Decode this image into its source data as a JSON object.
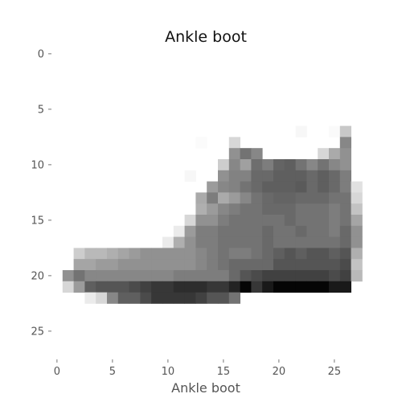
{
  "chart_data": {
    "type": "heatmap",
    "title": "Ankle boot",
    "xlabel": "Ankle boot",
    "ylabel": "",
    "colormap": "gray_r",
    "grid": false,
    "n_rows": 28,
    "n_cols": 28,
    "x_ticks": [
      0,
      5,
      10,
      15,
      20,
      25
    ],
    "y_ticks": [
      0,
      5,
      10,
      15,
      20,
      25
    ],
    "pixels_value_scale": "0 = white, 255 = black",
    "pixels": [
      [
        0,
        0,
        0,
        0,
        0,
        0,
        0,
        0,
        0,
        0,
        0,
        0,
        0,
        0,
        0,
        0,
        0,
        0,
        0,
        0,
        0,
        0,
        0,
        0,
        0,
        0,
        0,
        0
      ],
      [
        0,
        0,
        0,
        0,
        0,
        0,
        0,
        0,
        0,
        0,
        0,
        0,
        0,
        0,
        0,
        0,
        0,
        0,
        0,
        0,
        0,
        0,
        0,
        0,
        0,
        0,
        0,
        0
      ],
      [
        0,
        0,
        0,
        0,
        0,
        0,
        0,
        0,
        0,
        0,
        0,
        0,
        0,
        0,
        0,
        0,
        0,
        0,
        0,
        0,
        0,
        0,
        0,
        0,
        0,
        0,
        0,
        0
      ],
      [
        0,
        0,
        0,
        0,
        0,
        0,
        0,
        0,
        0,
        0,
        0,
        0,
        0,
        0,
        0,
        0,
        0,
        0,
        0,
        0,
        0,
        0,
        0,
        0,
        0,
        0,
        0,
        0
      ],
      [
        0,
        0,
        0,
        0,
        0,
        0,
        0,
        0,
        0,
        0,
        0,
        0,
        0,
        0,
        0,
        0,
        0,
        0,
        0,
        0,
        0,
        0,
        0,
        0,
        0,
        0,
        0,
        0
      ],
      [
        0,
        0,
        0,
        0,
        0,
        0,
        0,
        0,
        0,
        0,
        0,
        0,
        0,
        0,
        0,
        0,
        0,
        0,
        0,
        0,
        0,
        0,
        0,
        0,
        0,
        0,
        0,
        0
      ],
      [
        0,
        0,
        0,
        0,
        0,
        0,
        0,
        0,
        0,
        0,
        0,
        0,
        0,
        0,
        0,
        0,
        0,
        0,
        0,
        0,
        0,
        0,
        0,
        0,
        0,
        0,
        0,
        0
      ],
      [
        0,
        0,
        0,
        0,
        0,
        0,
        0,
        0,
        0,
        0,
        0,
        0,
        0,
        0,
        0,
        0,
        0,
        0,
        0,
        0,
        0,
        0,
        8,
        0,
        0,
        5,
        55,
        0
      ],
      [
        0,
        0,
        0,
        0,
        0,
        0,
        0,
        0,
        0,
        0,
        0,
        0,
        0,
        4,
        0,
        0,
        40,
        0,
        0,
        0,
        0,
        0,
        0,
        0,
        0,
        0,
        120,
        0
      ],
      [
        0,
        0,
        0,
        0,
        0,
        0,
        0,
        0,
        0,
        0,
        0,
        0,
        0,
        0,
        0,
        0,
        110,
        140,
        120,
        0,
        0,
        0,
        0,
        0,
        40,
        85,
        110,
        0
      ],
      [
        0,
        0,
        0,
        0,
        0,
        0,
        0,
        0,
        0,
        0,
        0,
        0,
        0,
        0,
        0,
        50,
        120,
        95,
        145,
        130,
        155,
        160,
        140,
        120,
        140,
        120,
        110,
        0
      ],
      [
        0,
        0,
        0,
        0,
        0,
        0,
        0,
        0,
        0,
        0,
        0,
        0,
        8,
        0,
        0,
        110,
        125,
        125,
        150,
        150,
        160,
        160,
        160,
        150,
        160,
        150,
        130,
        0
      ],
      [
        0,
        0,
        0,
        0,
        0,
        0,
        0,
        0,
        0,
        0,
        0,
        0,
        0,
        0,
        100,
        120,
        125,
        140,
        150,
        160,
        160,
        160,
        165,
        150,
        160,
        150,
        130,
        30
      ],
      [
        0,
        0,
        0,
        0,
        0,
        0,
        0,
        0,
        0,
        0,
        0,
        0,
        0,
        85,
        130,
        85,
        100,
        120,
        140,
        150,
        155,
        155,
        150,
        150,
        150,
        140,
        140,
        40
      ],
      [
        0,
        0,
        0,
        0,
        0,
        0,
        0,
        0,
        0,
        0,
        0,
        0,
        0,
        80,
        100,
        120,
        130,
        140,
        140,
        150,
        150,
        150,
        140,
        140,
        140,
        130,
        140,
        60
      ],
      [
        0,
        0,
        0,
        0,
        0,
        0,
        0,
        0,
        0,
        0,
        0,
        0,
        40,
        110,
        110,
        130,
        140,
        140,
        140,
        140,
        140,
        150,
        140,
        140,
        140,
        130,
        140,
        90
      ],
      [
        0,
        0,
        0,
        0,
        0,
        0,
        0,
        0,
        0,
        0,
        0,
        20,
        100,
        130,
        130,
        140,
        140,
        140,
        140,
        150,
        140,
        140,
        150,
        140,
        140,
        130,
        150,
        110
      ],
      [
        0,
        0,
        0,
        0,
        0,
        0,
        0,
        0,
        0,
        0,
        20,
        80,
        110,
        130,
        130,
        140,
        140,
        140,
        140,
        150,
        140,
        140,
        140,
        140,
        140,
        140,
        150,
        110
      ],
      [
        0,
        0,
        50,
        70,
        70,
        80,
        90,
        100,
        110,
        110,
        110,
        110,
        110,
        120,
        130,
        140,
        130,
        130,
        140,
        150,
        160,
        170,
        160,
        170,
        170,
        160,
        170,
        80
      ],
      [
        0,
        0,
        90,
        90,
        100,
        100,
        110,
        110,
        110,
        110,
        110,
        110,
        110,
        120,
        130,
        140,
        150,
        150,
        150,
        150,
        170,
        170,
        170,
        170,
        170,
        170,
        180,
        60
      ],
      [
        0,
        110,
        140,
        120,
        120,
        120,
        120,
        120,
        120,
        120,
        120,
        130,
        130,
        130,
        130,
        130,
        150,
        170,
        180,
        190,
        190,
        190,
        190,
        190,
        190,
        180,
        190,
        70
      ],
      [
        0,
        40,
        100,
        160,
        170,
        170,
        170,
        180,
        190,
        200,
        200,
        210,
        210,
        210,
        200,
        200,
        220,
        250,
        200,
        230,
        250,
        250,
        250,
        250,
        250,
        230,
        230,
        0
      ],
      [
        0,
        0,
        0,
        20,
        40,
        120,
        160,
        160,
        180,
        200,
        200,
        200,
        200,
        190,
        170,
        170,
        140,
        0,
        0,
        0,
        0,
        0,
        0,
        0,
        0,
        0,
        0,
        0
      ],
      [
        0,
        0,
        0,
        0,
        0,
        0,
        0,
        0,
        0,
        0,
        0,
        0,
        0,
        0,
        0,
        0,
        0,
        0,
        0,
        0,
        0,
        0,
        0,
        0,
        0,
        0,
        0,
        0
      ],
      [
        0,
        0,
        0,
        0,
        0,
        0,
        0,
        0,
        0,
        0,
        0,
        0,
        0,
        0,
        0,
        0,
        0,
        0,
        0,
        0,
        0,
        0,
        0,
        0,
        0,
        0,
        0,
        0
      ],
      [
        0,
        0,
        0,
        0,
        0,
        0,
        0,
        0,
        0,
        0,
        0,
        0,
        0,
        0,
        0,
        0,
        0,
        0,
        0,
        0,
        0,
        0,
        0,
        0,
        0,
        0,
        0,
        0
      ],
      [
        0,
        0,
        0,
        0,
        0,
        0,
        0,
        0,
        0,
        0,
        0,
        0,
        0,
        0,
        0,
        0,
        0,
        0,
        0,
        0,
        0,
        0,
        0,
        0,
        0,
        0,
        0,
        0
      ],
      [
        0,
        0,
        0,
        0,
        0,
        0,
        0,
        0,
        0,
        0,
        0,
        0,
        0,
        0,
        0,
        0,
        0,
        0,
        0,
        0,
        0,
        0,
        0,
        0,
        0,
        0,
        0,
        0
      ]
    ]
  }
}
